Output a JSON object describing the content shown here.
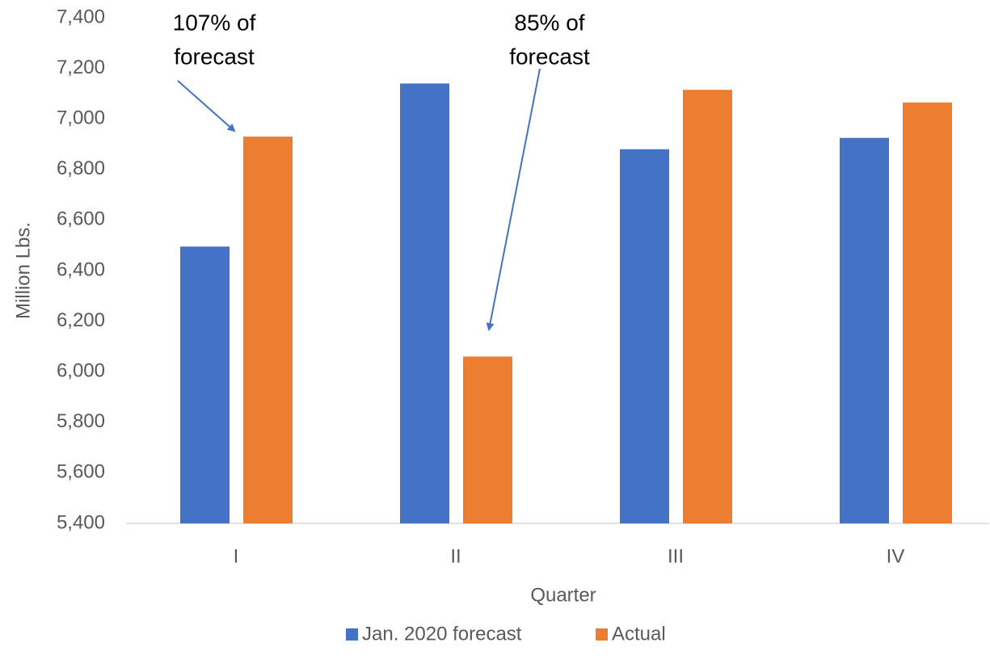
{
  "chart_data": {
    "type": "bar",
    "x_label": "Quarter",
    "y_label": "Million Lbs.",
    "categories": [
      "I",
      "II",
      "III",
      "IV"
    ],
    "series": [
      {
        "name": "Jan. 2020 forecast",
        "color": "#4472c4",
        "values": [
          6495,
          7140,
          6880,
          6925
        ]
      },
      {
        "name": "Actual",
        "color": "#ed7d31",
        "values": [
          6930,
          6060,
          7115,
          7065
        ]
      }
    ],
    "ylim": [
      5400,
      7400
    ],
    "yticks": [
      {
        "value": 5400,
        "label": "5,400"
      },
      {
        "value": 5600,
        "label": "5,600"
      },
      {
        "value": 5800,
        "label": "5,800"
      },
      {
        "value": 6000,
        "label": "6,000"
      },
      {
        "value": 6200,
        "label": "6,200"
      },
      {
        "value": 6400,
        "label": "6,400"
      },
      {
        "value": 6600,
        "label": "6,600"
      },
      {
        "value": 6800,
        "label": "6,800"
      },
      {
        "value": 7000,
        "label": "7,000"
      },
      {
        "value": 7200,
        "label": "7,200"
      },
      {
        "value": 7400,
        "label": "7,400"
      }
    ],
    "grid": false,
    "legend": "bottom",
    "annotations": [
      {
        "lines": [
          "107% of",
          "forecast"
        ]
      },
      {
        "lines": [
          "85% of",
          "forecast"
        ]
      }
    ]
  }
}
